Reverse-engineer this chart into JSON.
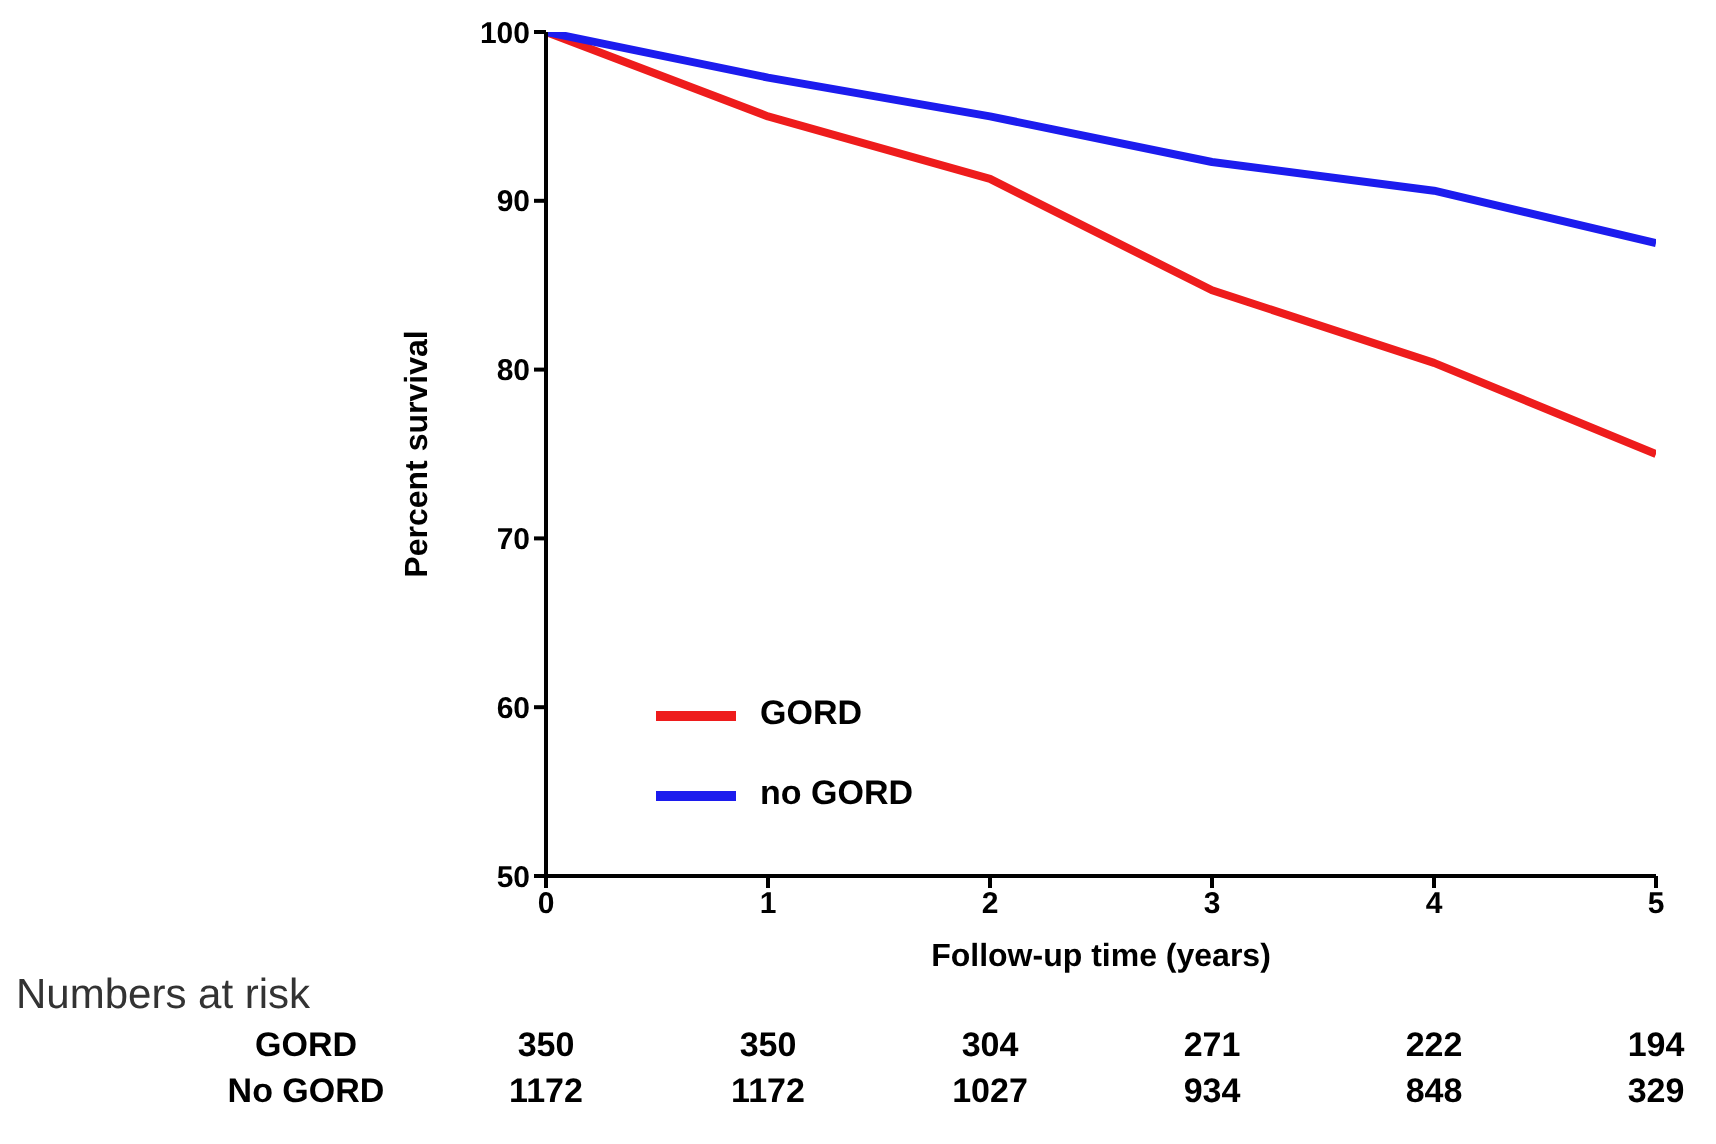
{
  "chart_data": {
    "type": "line",
    "xlabel": "Follow-up time (years)",
    "ylabel": "Percent survival",
    "x": [
      0,
      1,
      2,
      3,
      4,
      5
    ],
    "series": [
      {
        "name": "GORD",
        "color": "#ee1c1c",
        "values": [
          100,
          95,
          91.3,
          84.7,
          80.4,
          75
        ]
      },
      {
        "name": "no GORD",
        "color": "#1c1cee",
        "values": [
          100,
          97.3,
          95,
          92.3,
          90.6,
          87.5
        ]
      }
    ],
    "xlim": [
      0,
      5
    ],
    "xticks": [
      0,
      1,
      2,
      3,
      4,
      5
    ],
    "ylim": [
      50,
      100
    ],
    "yticks": [
      50,
      60,
      70,
      80,
      90,
      100
    ],
    "grid": false,
    "legend": "bottom left",
    "marker": "none",
    "line_style": "solid",
    "annotations": [
      "Numbers at risk",
      "GORD",
      "350",
      "350",
      "304",
      "271",
      "222",
      "194",
      "No GORD",
      "1172",
      "1172",
      "1027",
      "934",
      "848",
      "329"
    ]
  }
}
